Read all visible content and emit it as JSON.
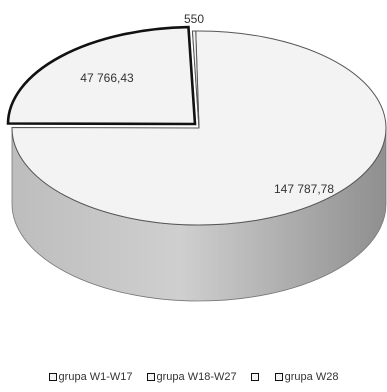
{
  "chart_data": {
    "type": "pie",
    "style": "3d",
    "title": "",
    "series": [
      {
        "name": "",
        "slices": [
          {
            "label": "grupa W1-W17",
            "value": 147787.78,
            "display": "147 787,78",
            "color": "#f3f3f3"
          },
          {
            "label": "grupa W18-W27",
            "value": 47766.43,
            "display": "47 766,43",
            "color": "#f3f3f3",
            "exploded": true
          },
          {
            "label": "",
            "value": 0,
            "display": "",
            "color": "#f3f3f3"
          },
          {
            "label": "grupa W28",
            "value": 550,
            "display": "550",
            "color": "#f3f3f3"
          }
        ]
      }
    ],
    "legend": {
      "position": "bottom",
      "entries": [
        "grupa W1-W17",
        "grupa W18-W27",
        "",
        "grupa W28"
      ]
    }
  }
}
